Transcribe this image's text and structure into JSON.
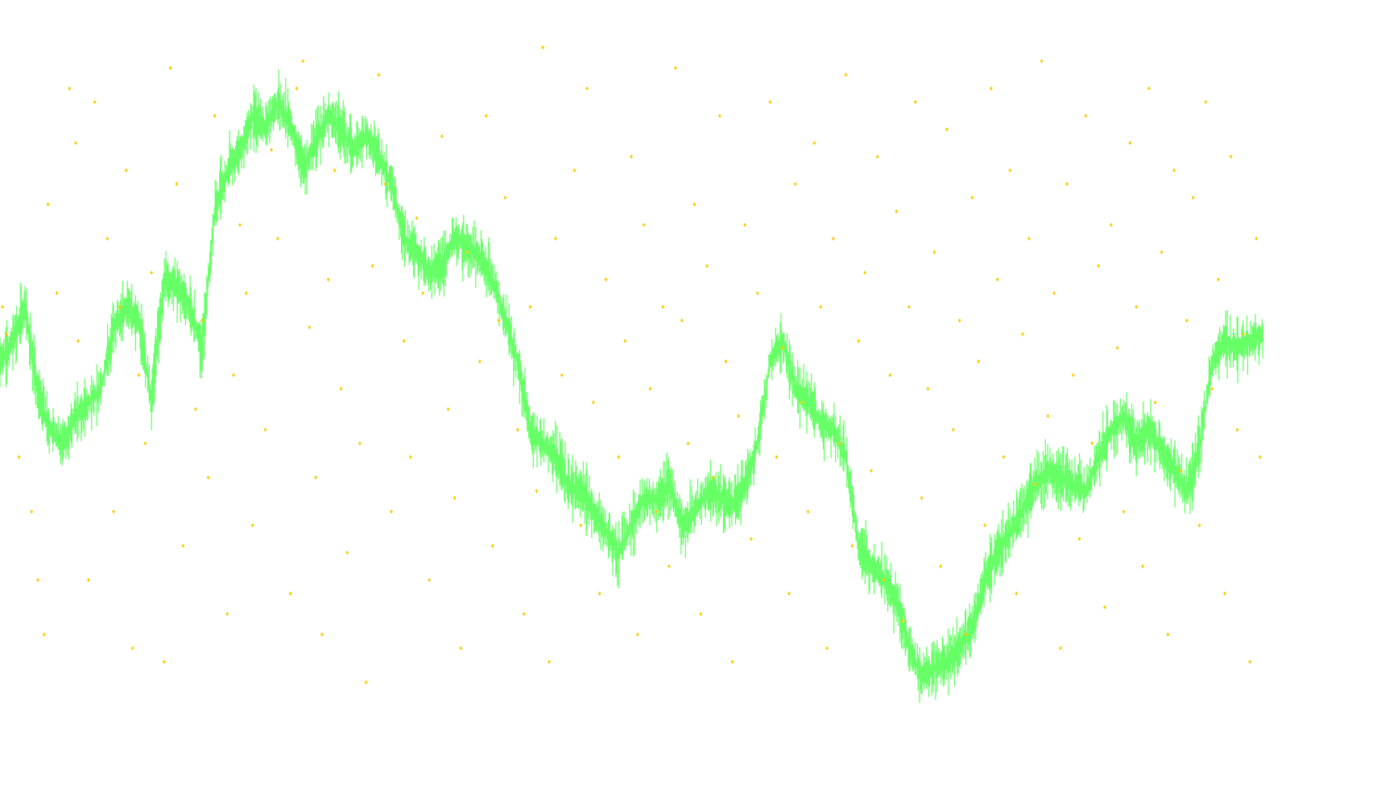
{
  "colors": {
    "background": "#ffffff",
    "price_line": "#66ff66",
    "scatter_points": "#ffcc00"
  },
  "chart_data": {
    "type": "line",
    "title": "",
    "xlabel": "",
    "ylabel": "",
    "grid": false,
    "legend": "none",
    "axes_visible": false,
    "xlim": [
      0,
      1000
    ],
    "ylim": [
      0,
      100
    ],
    "series": [
      {
        "kind": "line",
        "style": "dense-vertical-bars",
        "color": "#66ff66",
        "x": [
          0,
          10,
          20,
          30,
          40,
          50,
          60,
          70,
          80,
          90,
          100,
          110,
          120,
          130,
          140,
          150,
          160,
          170,
          180,
          190,
          200,
          210,
          220,
          230,
          240,
          250,
          260,
          270,
          280,
          290,
          300,
          310,
          320,
          330,
          340,
          350,
          360,
          370,
          380,
          390,
          400,
          410,
          420,
          430,
          440,
          450,
          460,
          470,
          480,
          490,
          500,
          510,
          520,
          530,
          540,
          550,
          560,
          570,
          580,
          590,
          600,
          610,
          620,
          630,
          640,
          650,
          660,
          670,
          680,
          690,
          700,
          710,
          720,
          730,
          740,
          750,
          760,
          770,
          780,
          790,
          800,
          810,
          820,
          830,
          840,
          850,
          860,
          870,
          880,
          890,
          900,
          910,
          920,
          930,
          940,
          950,
          960,
          970,
          980,
          990,
          1000
        ],
        "y": [
          52,
          55,
          60,
          47,
          42,
          40,
          44,
          46,
          48,
          57,
          60,
          58,
          46,
          64,
          63,
          60,
          54,
          74,
          80,
          83,
          88,
          86,
          90,
          87,
          80,
          84,
          88,
          86,
          83,
          85,
          82,
          78,
          70,
          68,
          65,
          66,
          70,
          69,
          67,
          64,
          58,
          52,
          42,
          40,
          38,
          34,
          33,
          30,
          27,
          24,
          28,
          32,
          32,
          34,
          28,
          30,
          33,
          32,
          31,
          34,
          40,
          52,
          55,
          48,
          46,
          43,
          42,
          38,
          25,
          22,
          20,
          17,
          10,
          6,
          7,
          8,
          10,
          13,
          20,
          24,
          27,
          30,
          34,
          36,
          35,
          34,
          33,
          38,
          42,
          44,
          40,
          42,
          39,
          36,
          33,
          39,
          52,
          55,
          54,
          55,
          56
        ]
      },
      {
        "kind": "scatter",
        "style": "small-diamonds",
        "color": "#ffcc00",
        "points": [
          [
            2,
            60
          ],
          [
            5,
            56
          ],
          [
            15,
            38
          ],
          [
            25,
            30
          ],
          [
            30,
            20
          ],
          [
            35,
            12
          ],
          [
            38,
            75
          ],
          [
            45,
            62
          ],
          [
            55,
            92
          ],
          [
            60,
            84
          ],
          [
            62,
            55
          ],
          [
            70,
            20
          ],
          [
            75,
            90
          ],
          [
            85,
            70
          ],
          [
            90,
            30
          ],
          [
            95,
            60
          ],
          [
            100,
            80
          ],
          [
            105,
            10
          ],
          [
            110,
            50
          ],
          [
            115,
            40
          ],
          [
            120,
            65
          ],
          [
            130,
            8
          ],
          [
            135,
            95
          ],
          [
            140,
            78
          ],
          [
            145,
            25
          ],
          [
            155,
            45
          ],
          [
            160,
            58
          ],
          [
            165,
            35
          ],
          [
            170,
            88
          ],
          [
            180,
            15
          ],
          [
            185,
            50
          ],
          [
            190,
            72
          ],
          [
            195,
            62
          ],
          [
            200,
            28
          ],
          [
            210,
            42
          ],
          [
            215,
            83
          ],
          [
            220,
            70
          ],
          [
            230,
            18
          ],
          [
            235,
            92
          ],
          [
            240,
            96
          ],
          [
            245,
            57
          ],
          [
            250,
            35
          ],
          [
            255,
            12
          ],
          [
            260,
            64
          ],
          [
            265,
            80
          ],
          [
            270,
            48
          ],
          [
            275,
            24
          ],
          [
            285,
            40
          ],
          [
            290,
            5
          ],
          [
            295,
            66
          ],
          [
            300,
            94
          ],
          [
            305,
            78
          ],
          [
            310,
            30
          ],
          [
            320,
            55
          ],
          [
            325,
            38
          ],
          [
            330,
            73
          ],
          [
            335,
            62
          ],
          [
            340,
            20
          ],
          [
            350,
            85
          ],
          [
            355,
            45
          ],
          [
            360,
            32
          ],
          [
            365,
            10
          ],
          [
            370,
            68
          ],
          [
            380,
            52
          ],
          [
            385,
            88
          ],
          [
            390,
            25
          ],
          [
            395,
            58
          ],
          [
            400,
            76
          ],
          [
            410,
            42
          ],
          [
            415,
            15
          ],
          [
            420,
            60
          ],
          [
            425,
            33
          ],
          [
            430,
            98
          ],
          [
            435,
            8
          ],
          [
            440,
            70
          ],
          [
            445,
            50
          ],
          [
            455,
            80
          ],
          [
            460,
            28
          ],
          [
            465,
            92
          ],
          [
            470,
            46
          ],
          [
            475,
            18
          ],
          [
            480,
            64
          ],
          [
            490,
            38
          ],
          [
            495,
            55
          ],
          [
            500,
            82
          ],
          [
            505,
            12
          ],
          [
            510,
            72
          ],
          [
            515,
            48
          ],
          [
            520,
            30
          ],
          [
            525,
            60
          ],
          [
            530,
            22
          ],
          [
            535,
            95
          ],
          [
            540,
            58
          ],
          [
            545,
            40
          ],
          [
            550,
            75
          ],
          [
            555,
            15
          ],
          [
            560,
            66
          ],
          [
            565,
            35
          ],
          [
            570,
            88
          ],
          [
            575,
            52
          ],
          [
            580,
            8
          ],
          [
            585,
            44
          ],
          [
            590,
            72
          ],
          [
            595,
            26
          ],
          [
            600,
            62
          ],
          [
            610,
            90
          ],
          [
            615,
            38
          ],
          [
            620,
            54
          ],
          [
            625,
            18
          ],
          [
            630,
            78
          ],
          [
            635,
            46
          ],
          [
            640,
            30
          ],
          [
            645,
            84
          ],
          [
            650,
            60
          ],
          [
            655,
            10
          ],
          [
            660,
            70
          ],
          [
            665,
            40
          ],
          [
            670,
            94
          ],
          [
            675,
            25
          ],
          [
            680,
            55
          ],
          [
            685,
            65
          ],
          [
            690,
            36
          ],
          [
            695,
            82
          ],
          [
            700,
            20
          ],
          [
            705,
            50
          ],
          [
            710,
            74
          ],
          [
            715,
            14
          ],
          [
            720,
            60
          ],
          [
            725,
            90
          ],
          [
            730,
            32
          ],
          [
            735,
            48
          ],
          [
            740,
            68
          ],
          [
            745,
            22
          ],
          [
            750,
            86
          ],
          [
            755,
            42
          ],
          [
            760,
            58
          ],
          [
            765,
            12
          ],
          [
            770,
            76
          ],
          [
            775,
            52
          ],
          [
            780,
            28
          ],
          [
            785,
            92
          ],
          [
            790,
            64
          ],
          [
            795,
            38
          ],
          [
            800,
            80
          ],
          [
            805,
            18
          ],
          [
            810,
            56
          ],
          [
            815,
            70
          ],
          [
            820,
            34
          ],
          [
            825,
            96
          ],
          [
            830,
            44
          ],
          [
            835,
            62
          ],
          [
            840,
            10
          ],
          [
            845,
            78
          ],
          [
            850,
            50
          ],
          [
            855,
            26
          ],
          [
            860,
            88
          ],
          [
            865,
            40
          ],
          [
            870,
            66
          ],
          [
            875,
            16
          ],
          [
            880,
            72
          ],
          [
            885,
            54
          ],
          [
            890,
            30
          ],
          [
            895,
            84
          ],
          [
            900,
            60
          ],
          [
            905,
            22
          ],
          [
            910,
            92
          ],
          [
            915,
            46
          ],
          [
            920,
            68
          ],
          [
            925,
            12
          ],
          [
            930,
            80
          ],
          [
            935,
            36
          ],
          [
            940,
            58
          ],
          [
            945,
            76
          ],
          [
            950,
            28
          ],
          [
            955,
            90
          ],
          [
            960,
            48
          ],
          [
            965,
            64
          ],
          [
            970,
            18
          ],
          [
            975,
            82
          ],
          [
            980,
            42
          ],
          [
            985,
            56
          ],
          [
            990,
            8
          ],
          [
            995,
            70
          ],
          [
            998,
            38
          ]
        ]
      }
    ]
  }
}
